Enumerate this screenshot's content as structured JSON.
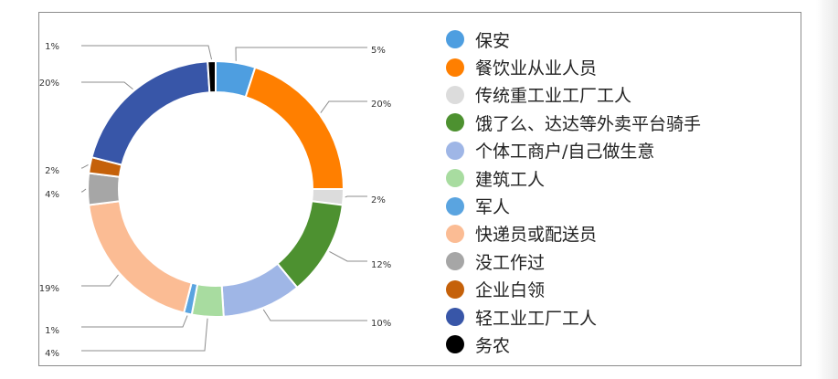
{
  "chart_data": {
    "type": "pie",
    "donut": true,
    "title": "",
    "legend": "right",
    "slices": [
      {
        "label": "保安",
        "value": 5,
        "value_label": "5%",
        "color": "#4e9ee0"
      },
      {
        "label": "餐饮业从业人员",
        "value": 20,
        "value_label": "20%",
        "color": "#ff7f00"
      },
      {
        "label": "传统重工业工厂工人",
        "value": 2,
        "value_label": "2%",
        "color": "#dcdcdc"
      },
      {
        "label": "饿了么、达达等外卖平台骑手",
        "value": 12,
        "value_label": "12%",
        "color": "#4d9130"
      },
      {
        "label": "个体工商户/自己做生意",
        "value": 10,
        "value_label": "10%",
        "color": "#9fb6e6"
      },
      {
        "label": "建筑工人",
        "value": 4,
        "value_label": "4%",
        "color": "#a8dca0"
      },
      {
        "label": "军人",
        "value": 1,
        "value_label": "1%",
        "color": "#5aa4e0"
      },
      {
        "label": "快递员或配送员",
        "value": 19,
        "value_label": "19%",
        "color": "#fbbc94"
      },
      {
        "label": "没工作过",
        "value": 4,
        "value_label": "4%",
        "color": "#a6a6a6"
      },
      {
        "label": "企业白领",
        "value": 2,
        "value_label": "2%",
        "color": "#c5610a"
      },
      {
        "label": "轻工业工厂工人",
        "value": 20,
        "value_label": "20%",
        "color": "#3856a8"
      },
      {
        "label": "务农",
        "value": 1,
        "value_label": "1%",
        "color": "#000000"
      }
    ]
  }
}
